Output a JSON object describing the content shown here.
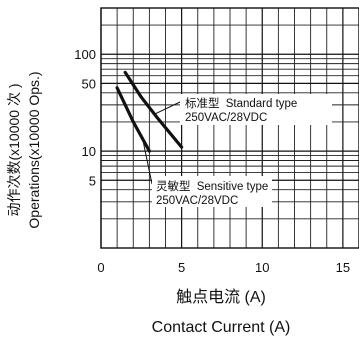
{
  "chart_data": {
    "type": "line",
    "title": "",
    "xlabel_cn": "触点电流 (A)",
    "xlabel_en": "Contact Current (A)",
    "ylabel_cn": "动作次数(x10000 次 )",
    "ylabel_en": "Operations(x10000 Ops.)",
    "x_scale": "linear",
    "y_scale": "log",
    "xlim": [
      0,
      16
    ],
    "ylim": [
      1,
      300
    ],
    "x_ticks": [
      0,
      5,
      10,
      15
    ],
    "x_tick_labels": [
      "0",
      "5",
      "10",
      "15"
    ],
    "y_ticks": [
      5,
      10,
      50,
      100
    ],
    "y_tick_labels": [
      "5",
      "10",
      "50",
      "100"
    ],
    "y_grid": [
      2,
      3,
      4,
      5,
      6,
      7,
      8,
      9,
      10,
      20,
      30,
      40,
      50,
      60,
      70,
      80,
      90,
      100,
      200,
      300
    ],
    "x_grid": [
      0,
      1,
      2,
      3,
      4,
      5,
      6,
      7,
      8,
      9,
      10,
      11,
      12,
      13,
      14,
      15,
      16
    ],
    "grid": true,
    "series": [
      {
        "id": "standard",
        "label_cn": "标准型",
        "label_en": "Standard type",
        "label_rating": "250VAC/28VDC",
        "x": [
          1.5,
          2.5,
          3.5,
          5.0
        ],
        "y": [
          65,
          36,
          22,
          11
        ]
      },
      {
        "id": "sensitive",
        "label_cn": "灵敏型",
        "label_en": "Sensitive type",
        "label_rating": "250VAC/28VDC",
        "x": [
          1.0,
          2.0,
          3.0
        ],
        "y": [
          45,
          20,
          10
        ]
      }
    ]
  }
}
